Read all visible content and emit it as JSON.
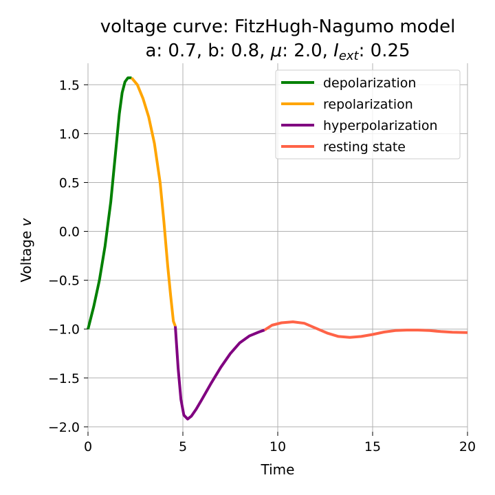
{
  "chart_data": {
    "type": "line",
    "title_line1": "voltage curve: FitzHugh-Nagumo model",
    "title_line2_prefix": "a: 0.7, b: 0.8, ",
    "title_mu": "μ",
    "title_mu_value": ": 2.0, ",
    "title_iext_base": "I",
    "title_iext_sub": "ext",
    "title_iext_value": ": 0.25",
    "xlabel": "Time",
    "ylabel_prefix": "Voltage ",
    "ylabel_var": "v",
    "xlim": [
      0,
      20
    ],
    "ylim": [
      -2.05,
      1.72
    ],
    "xticks": [
      0,
      5,
      10,
      15,
      20
    ],
    "xtick_labels": [
      "0",
      "5",
      "10",
      "15",
      "20"
    ],
    "yticks": [
      1.5,
      1.0,
      0.5,
      0.0,
      -0.5,
      -1.0,
      -1.5,
      -2.0
    ],
    "ytick_labels": [
      "1.5",
      "1.0",
      "0.5",
      "0.0",
      "−0.5",
      "−1.0",
      "−1.5",
      "−2.0"
    ],
    "grid": true,
    "legend_position": "top-right",
    "series": [
      {
        "name": "depolarization",
        "color": "#008000",
        "x": [
          0,
          0.3,
          0.6,
          0.9,
          1.2,
          1.45,
          1.65,
          1.8,
          1.95,
          2.1,
          2.3
        ],
        "y": [
          -1.0,
          -0.77,
          -0.5,
          -0.15,
          0.3,
          0.8,
          1.2,
          1.42,
          1.53,
          1.57,
          1.57
        ]
      },
      {
        "name": "repolarization",
        "color": "#ffa500",
        "x": [
          2.3,
          2.6,
          2.9,
          3.2,
          3.5,
          3.8,
          4.0,
          4.2,
          4.35,
          4.5,
          4.6
        ],
        "y": [
          1.57,
          1.5,
          1.36,
          1.17,
          0.9,
          0.5,
          0.1,
          -0.35,
          -0.65,
          -0.92,
          -0.97
        ]
      },
      {
        "name": "hyperpolarization",
        "color": "#800080",
        "x": [
          4.6,
          4.75,
          4.9,
          5.05,
          5.25,
          5.45,
          5.7,
          6.0,
          6.5,
          7.0,
          7.5,
          8.0,
          8.5,
          9.0,
          9.3
        ],
        "y": [
          -0.97,
          -1.4,
          -1.72,
          -1.88,
          -1.92,
          -1.89,
          -1.82,
          -1.72,
          -1.55,
          -1.39,
          -1.25,
          -1.14,
          -1.07,
          -1.03,
          -1.01
        ]
      },
      {
        "name": "resting state",
        "color": "#ff6347",
        "x": [
          9.3,
          9.7,
          10.2,
          10.8,
          11.4,
          12.0,
          12.6,
          13.2,
          13.8,
          14.4,
          15.0,
          15.6,
          16.2,
          16.8,
          17.4,
          18.0,
          18.6,
          19.2,
          20.0
        ],
        "y": [
          -1.01,
          -0.96,
          -0.935,
          -0.925,
          -0.94,
          -0.99,
          -1.04,
          -1.075,
          -1.085,
          -1.075,
          -1.055,
          -1.03,
          -1.015,
          -1.01,
          -1.01,
          -1.015,
          -1.025,
          -1.032,
          -1.035
        ]
      }
    ]
  }
}
